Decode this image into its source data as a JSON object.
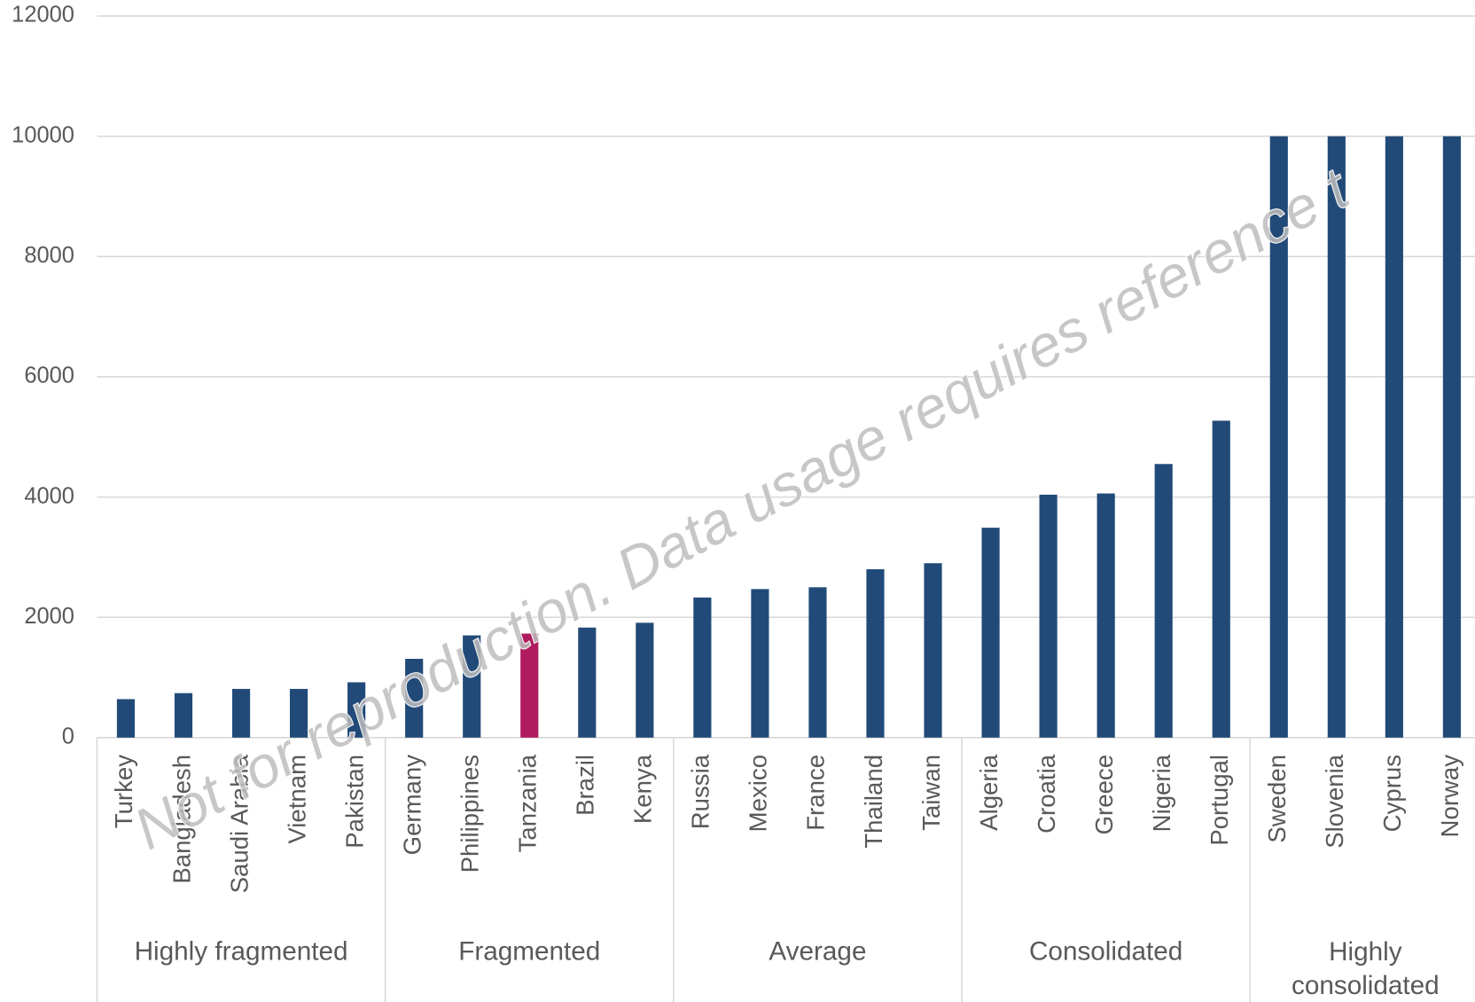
{
  "chart_data": {
    "type": "bar",
    "categories": [
      "Turkey",
      "Bangladesh",
      "Saudi Arabia",
      "Vietnam",
      "Pakistan",
      "Germany",
      "Philippines",
      "Tanzania",
      "Brazil",
      "Kenya",
      "Russia",
      "Mexico",
      "France",
      "Thailand",
      "Taiwan",
      "Algeria",
      "Croatia",
      "Greece",
      "Nigeria",
      "Portugal",
      "Sweden",
      "Slovenia",
      "Cyprus",
      "Norway"
    ],
    "values": [
      640,
      740,
      810,
      810,
      920,
      1310,
      1700,
      1730,
      1830,
      1910,
      2330,
      2470,
      2500,
      2800,
      2900,
      3490,
      4040,
      4060,
      4550,
      5270,
      10000,
      10000,
      10000,
      10000
    ],
    "color": "#214a78",
    "highlight": "Tanzania",
    "highlight_color": "#b01a5e",
    "groups": [
      {
        "name": "Highly fragmented",
        "size": 5
      },
      {
        "name": "Fragmented",
        "size": 5
      },
      {
        "name": "Average",
        "size": 5
      },
      {
        "name": "Consolidated",
        "size": 5
      },
      {
        "name": "Highly consolidated",
        "size": 4
      }
    ],
    "ylim": [
      0,
      12000
    ],
    "yticks": [
      0,
      2000,
      4000,
      6000,
      8000,
      10000,
      12000
    ],
    "grid": true,
    "watermark": "Not for reproduction. Data usage requires reference t"
  }
}
